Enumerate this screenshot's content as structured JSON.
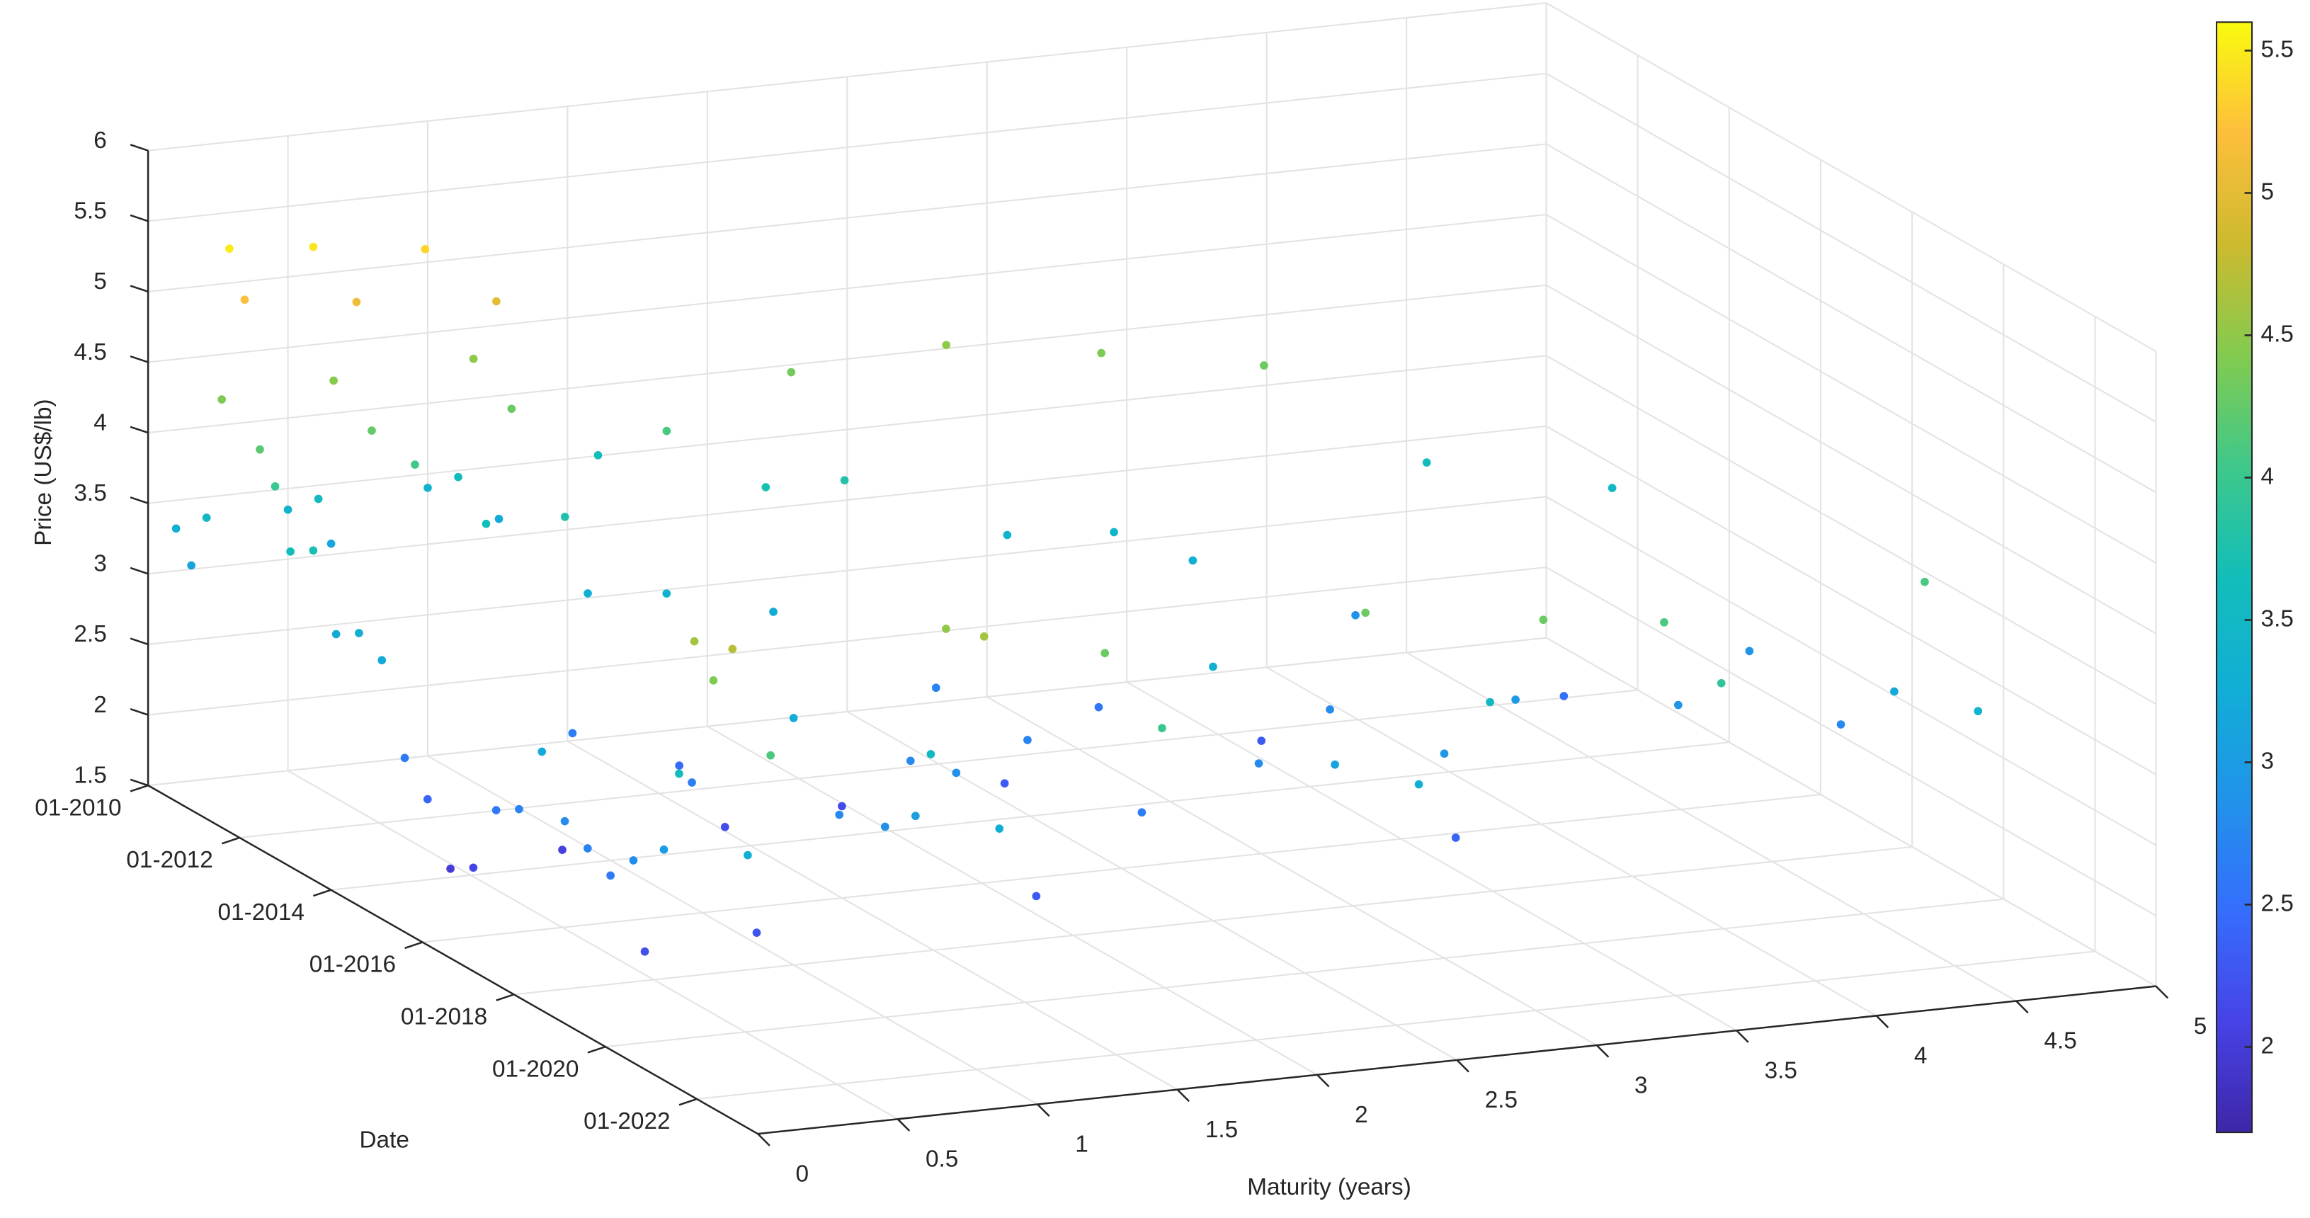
{
  "chart_data": {
    "type": "scatter3d",
    "xlabel": "Maturity (years)",
    "ylabel": "Date",
    "zlabel": "Price (US$/lb)",
    "xlim": [
      0,
      5
    ],
    "xticks": [
      0,
      0.5,
      1,
      1.5,
      2,
      2.5,
      3,
      3.5,
      4,
      4.5,
      5
    ],
    "ylim": [
      "01-2010",
      "05-2023"
    ],
    "yticks": [
      "01-2010",
      "01-2012",
      "01-2014",
      "01-2016",
      "01-2018",
      "01-2020",
      "01-2022"
    ],
    "zlim": [
      1.5,
      6
    ],
    "zticks": [
      1.5,
      2,
      2.5,
      3,
      3.5,
      4,
      4.5,
      5,
      5.5,
      6
    ],
    "grid": true,
    "colormap": "parula",
    "colorbar": {
      "clim": [
        1.7,
        5.6
      ],
      "ticks": [
        2,
        2.5,
        3,
        3.5,
        4,
        4.5,
        5,
        5.5
      ]
    },
    "x": [
      0.1,
      0.5,
      1.0,
      0.1,
      0.6,
      1.2,
      0.1,
      0.5,
      1.0,
      1.5,
      0.1,
      0.5,
      1.0,
      0.1,
      0.4,
      0.8,
      0.1,
      0.5,
      1.0,
      0.1,
      0.5,
      1.0,
      2.0,
      0.1,
      0.6,
      1.5,
      2.5,
      0.1,
      0.8,
      1.8,
      3.0,
      0.1,
      1.0,
      2.0,
      3.5,
      0.1,
      1.0,
      2.5,
      4.0,
      0.1,
      1.2,
      2.8,
      0.1,
      1.5,
      3.0,
      4.5,
      0.1,
      0.7,
      2.0,
      3.5,
      0.1,
      1.0,
      2.5,
      0.1,
      0.5,
      1.5,
      3.0,
      0.1,
      1.0,
      2.0,
      4.0,
      0.1,
      0.8,
      2.0,
      0.1,
      1.5,
      3.0,
      4.5,
      0.1,
      1.0,
      2.5,
      0.1,
      1.5,
      3.5,
      0.1,
      1.0,
      2.5,
      4.0,
      0.1,
      2.0,
      4.5,
      0.1,
      1.0,
      3.0,
      0.1,
      0.5,
      1.5,
      3.0,
      0.1,
      1.0,
      2.5,
      4.5,
      0.1,
      1.0,
      3.0,
      0.1,
      1.0,
      2.5,
      4.5,
      0.1,
      1.5,
      3.5,
      0.1,
      1.0,
      3.0,
      0.1,
      1.0,
      2.5,
      4.5,
      0.1,
      1.5,
      3.5
    ],
    "y": [
      "01-2010",
      "01-2010",
      "01-2010",
      "05-2010",
      "05-2010",
      "05-2010",
      "09-2010",
      "09-2010",
      "09-2010",
      "09-2010",
      "01-2011",
      "01-2011",
      "01-2011",
      "03-2011",
      "03-2011",
      "03-2011",
      "07-2011",
      "07-2011",
      "07-2011",
      "11-2011",
      "11-2011",
      "11-2011",
      "11-2011",
      "03-2012",
      "03-2012",
      "03-2012",
      "03-2012",
      "07-2012",
      "07-2012",
      "07-2012",
      "07-2012",
      "01-2013",
      "01-2013",
      "01-2013",
      "01-2013",
      "07-2013",
      "07-2013",
      "07-2013",
      "07-2013",
      "01-2014",
      "01-2014",
      "01-2014",
      "07-2014",
      "07-2014",
      "07-2014",
      "07-2014",
      "01-2015",
      "01-2015",
      "01-2015",
      "01-2015",
      "07-2015",
      "07-2015",
      "07-2015",
      "01-2016",
      "01-2016",
      "01-2016",
      "01-2016",
      "07-2016",
      "07-2016",
      "07-2016",
      "07-2016",
      "01-2017",
      "01-2017",
      "01-2017",
      "07-2017",
      "07-2017",
      "07-2017",
      "07-2017",
      "01-2018",
      "01-2018",
      "01-2018",
      "07-2018",
      "07-2018",
      "07-2018",
      "01-2019",
      "01-2019",
      "01-2019",
      "01-2019",
      "07-2019",
      "07-2019",
      "07-2019",
      "01-2020",
      "01-2020",
      "01-2020",
      "04-2020",
      "04-2020",
      "04-2020",
      "04-2020",
      "09-2020",
      "09-2020",
      "09-2020",
      "09-2020",
      "01-2021",
      "01-2021",
      "01-2021",
      "05-2021",
      "05-2021",
      "05-2021",
      "05-2021",
      "10-2021",
      "10-2021",
      "10-2021",
      "03-2022",
      "03-2022",
      "03-2022",
      "07-2022",
      "07-2022",
      "07-2022",
      "07-2022",
      "01-2023",
      "01-2023",
      "01-2023"
    ],
    "z": [
      3.3,
      3.35,
      3.4,
      3.1,
      3.15,
      3.2,
      3.5,
      3.55,
      3.6,
      3.65,
      4.4,
      4.45,
      4.5,
      5.5,
      5.45,
      5.35,
      5.2,
      5.1,
      5.0,
      4.2,
      4.25,
      4.3,
      4.35,
      4.0,
      4.05,
      4.1,
      4.5,
      3.6,
      3.65,
      3.7,
      4.4,
      3.7,
      3.75,
      3.8,
      4.3,
      3.2,
      3.3,
      3.4,
      3.6,
      3.3,
      3.35,
      3.45,
      3.2,
      3.25,
      3.3,
      3.5,
      2.6,
      2.65,
      2.7,
      2.9,
      2.4,
      2.45,
      2.55,
      2.0,
      2.05,
      2.15,
      2.3,
      2.1,
      2.2,
      2.3,
      2.5,
      2.6,
      2.65,
      2.7,
      2.7,
      2.75,
      2.8,
      2.9,
      3.2,
      3.25,
      3.3,
      2.8,
      2.85,
      2.95,
      2.7,
      2.75,
      2.8,
      2.9,
      2.6,
      2.65,
      2.75,
      2.8,
      2.85,
      2.95,
      2.2,
      2.25,
      2.3,
      2.4,
      3.0,
      3.05,
      3.1,
      3.2,
      3.6,
      3.55,
      3.5,
      4.6,
      4.5,
      4.3,
      4.1,
      4.4,
      4.3,
      4.1,
      4.7,
      4.6,
      4.3,
      3.3,
      3.3,
      3.3,
      3.4,
      4.1,
      4.0,
      3.9
    ]
  }
}
